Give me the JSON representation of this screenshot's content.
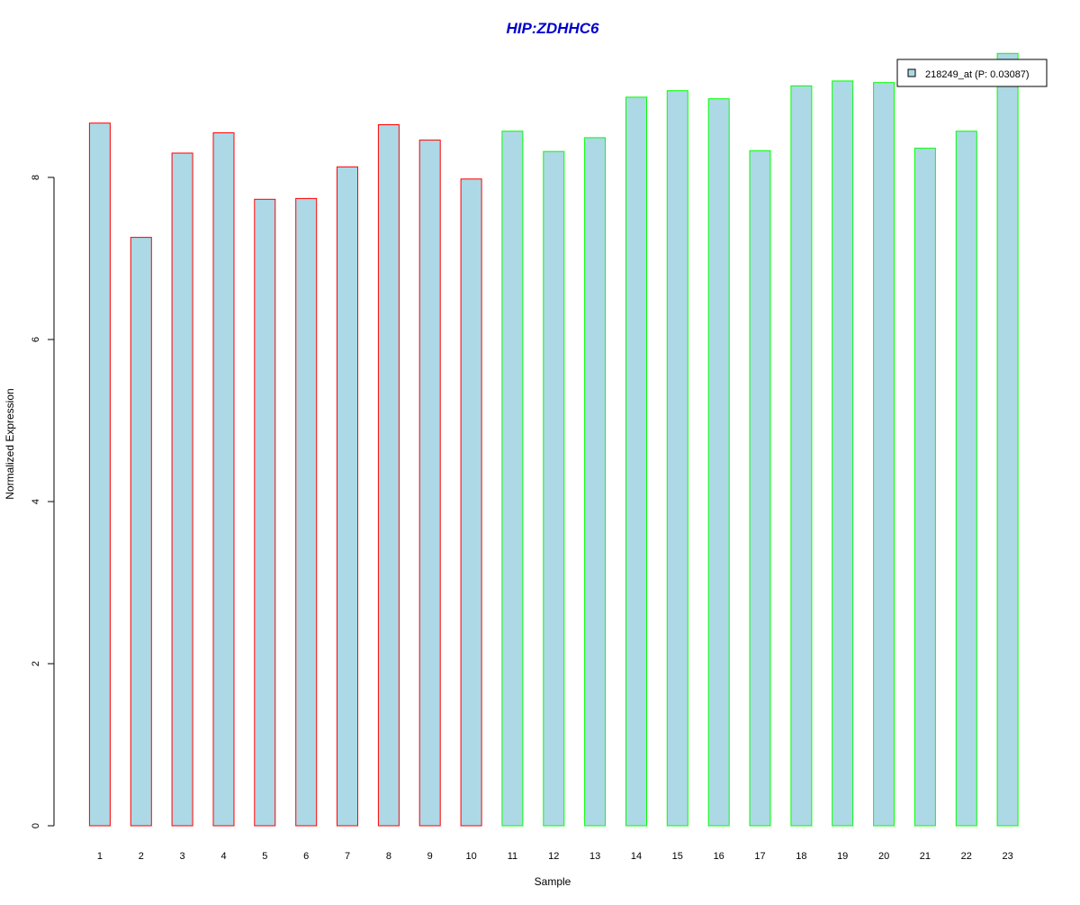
{
  "colors": {
    "bar_fill": "#ADD8E6",
    "group1_border": "#FF0000",
    "group2_border": "#00FF00",
    "title": "#0000CC",
    "axis": "#000000"
  },
  "chart_data": {
    "type": "bar",
    "title": "HIP:ZDHHC6",
    "xlabel": "Sample",
    "ylabel": "Normalized Expression",
    "ylim": [
      0,
      9.5
    ],
    "yticks": [
      "0",
      "2",
      "4",
      "6",
      "8"
    ],
    "categories": [
      "1",
      "2",
      "3",
      "4",
      "5",
      "6",
      "7",
      "8",
      "9",
      "10",
      "11",
      "12",
      "13",
      "14",
      "15",
      "16",
      "17",
      "18",
      "19",
      "20",
      "21",
      "22",
      "23"
    ],
    "series": [
      {
        "name": "218249_at (P: 0.03087)",
        "values": [
          8.67,
          7.26,
          8.3,
          8.55,
          7.73,
          7.74,
          8.13,
          8.65,
          8.46,
          7.98,
          8.57,
          8.32,
          8.49,
          8.99,
          9.07,
          8.97,
          8.33,
          9.13,
          9.19,
          9.17,
          8.36,
          8.57,
          9.53
        ]
      }
    ],
    "group_assignment": [
      1,
      1,
      1,
      1,
      1,
      1,
      1,
      1,
      1,
      1,
      2,
      2,
      2,
      2,
      2,
      2,
      2,
      2,
      2,
      2,
      2,
      2,
      2
    ],
    "legend_position": "top-right",
    "grid": false
  }
}
